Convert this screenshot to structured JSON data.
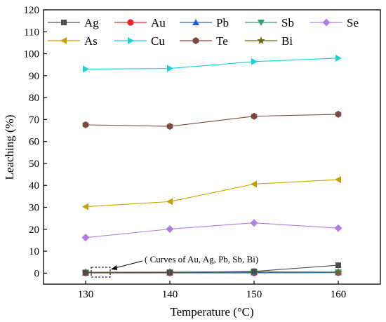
{
  "chart_data": {
    "type": "line",
    "xlabel": "Temperature (°C)",
    "ylabel": "Leaching (%)",
    "xlim": [
      125,
      165
    ],
    "ylim": [
      -5,
      120
    ],
    "x_ticks": [
      130,
      140,
      150,
      160
    ],
    "y_ticks": [
      0,
      10,
      20,
      30,
      40,
      50,
      60,
      70,
      80,
      90,
      100,
      110,
      120
    ],
    "grid": false,
    "legend_position": "top, inside plot",
    "annotation": "( Curves of Au, Ag, Pb, Sb, Bi)",
    "x": [
      130,
      140,
      150,
      160
    ],
    "series": [
      {
        "name": "Ag",
        "color": "#4d4d4d",
        "marker": "square",
        "values": [
          0.2,
          0.3,
          0.8,
          3.6
        ]
      },
      {
        "name": "Au",
        "color": "#e8262a",
        "marker": "circle",
        "values": [
          0.1,
          0.1,
          0.1,
          0.2
        ]
      },
      {
        "name": "Pb",
        "color": "#1f5fd1",
        "marker": "triangle-up",
        "values": [
          0.2,
          0.2,
          0.3,
          0.3
        ]
      },
      {
        "name": "Sb",
        "color": "#2e9e6b",
        "marker": "triangle-down",
        "values": [
          0.3,
          0.4,
          0.5,
          0.4
        ]
      },
      {
        "name": "Se",
        "color": "#b57ce0",
        "marker": "diamond",
        "values": [
          16.2,
          20.1,
          22.9,
          20.5
        ]
      },
      {
        "name": "As",
        "color": "#c8a000",
        "marker": "triangle-left",
        "values": [
          30.3,
          32.6,
          40.6,
          42.6
        ]
      },
      {
        "name": "Cu",
        "color": "#17d3d3",
        "marker": "triangle-right",
        "values": [
          93.0,
          93.3,
          96.4,
          98.0
        ]
      },
      {
        "name": "Te",
        "color": "#7a4a3e",
        "marker": "hexagon",
        "values": [
          67.6,
          66.9,
          71.5,
          72.4
        ]
      },
      {
        "name": "Bi",
        "color": "#6b6b12",
        "marker": "star",
        "values": [
          0.4,
          0.5,
          0.6,
          0.5
        ]
      }
    ]
  }
}
